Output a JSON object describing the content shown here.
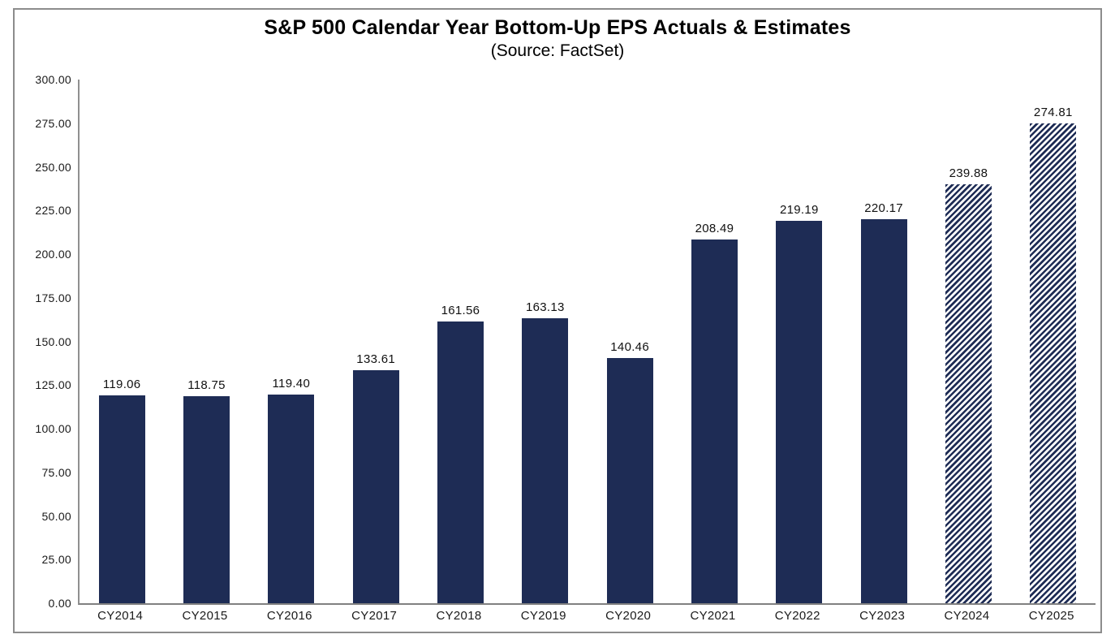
{
  "page": {
    "background_color": "#ffffff",
    "frame_border_color": "#8c8c8c"
  },
  "chart_data": {
    "type": "bar",
    "title": "S&P 500 Calendar Year Bottom-Up EPS Actuals & Estimates",
    "subtitle": "(Source: FactSet)",
    "categories": [
      "CY2014",
      "CY2015",
      "CY2016",
      "CY2017",
      "CY2018",
      "CY2019",
      "CY2020",
      "CY2021",
      "CY2022",
      "CY2023",
      "CY2024",
      "CY2025"
    ],
    "values": [
      119.06,
      118.75,
      119.4,
      133.61,
      161.56,
      163.13,
      140.46,
      208.49,
      219.19,
      220.17,
      239.88,
      274.81
    ],
    "value_labels": [
      "119.06",
      "118.75",
      "119.40",
      "133.61",
      "161.56",
      "163.13",
      "140.46",
      "208.49",
      "219.19",
      "220.17",
      "239.88",
      "274.81"
    ],
    "is_estimate": [
      false,
      false,
      false,
      false,
      false,
      false,
      false,
      false,
      false,
      false,
      true,
      true
    ],
    "estimate_style": "diagonal-hatch",
    "yticks": [
      {
        "label": "0.00",
        "value": 0
      },
      {
        "label": "25.00",
        "value": 25
      },
      {
        "label": "50.00",
        "value": 50
      },
      {
        "label": "75.00",
        "value": 75
      },
      {
        "label": "100.00",
        "value": 100
      },
      {
        "label": "125.00",
        "value": 125
      },
      {
        "label": "150.00",
        "value": 150
      },
      {
        "label": "175.00",
        "value": 175
      },
      {
        "label": "200.00",
        "value": 200
      },
      {
        "label": "225.00",
        "value": 225
      },
      {
        "label": "250.00",
        "value": 250
      },
      {
        "label": "275.00",
        "value": 275
      },
      {
        "label": "300.00",
        "value": 300
      }
    ],
    "ylim": [
      0,
      300
    ],
    "xlabel": "",
    "ylabel": "",
    "grid": false,
    "legend": false,
    "bar_color": "#1e2c55",
    "axis_color": "#808080",
    "label_color": "#1a1a1a"
  }
}
